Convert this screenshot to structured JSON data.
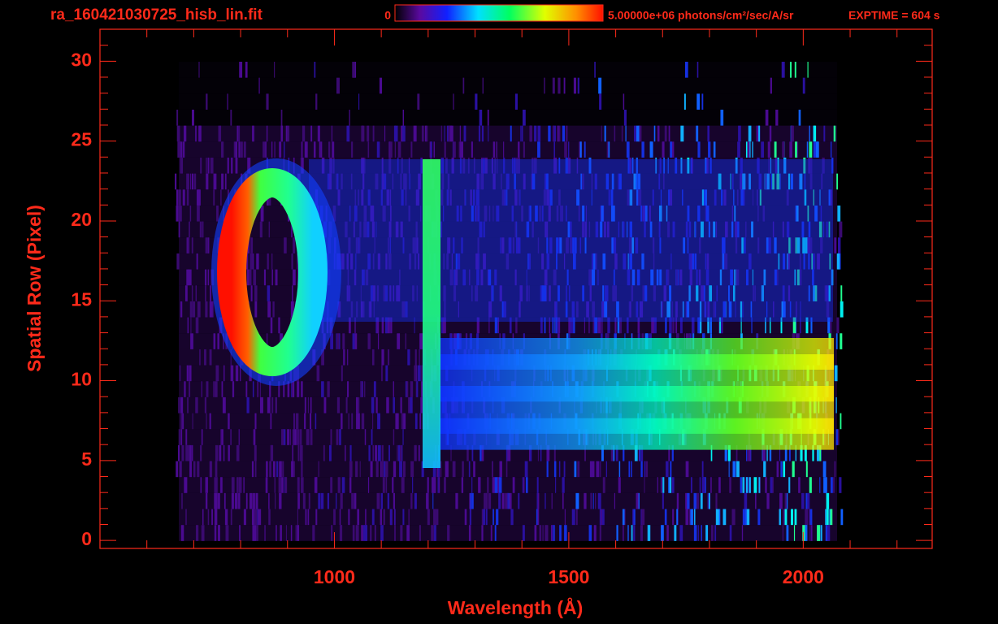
{
  "chart_data": {
    "type": "image",
    "title": "ra_160421030725_hisb_lin.fit",
    "exptime": "EXPTIME = 604 s",
    "colorbar_ticks": [
      0,
      {
        "value": 5000000,
        "label": "5.00000e+06 photons/cm²/sec/A/sr"
      }
    ],
    "zlim": [
      0,
      5000000
    ],
    "xlabel": "Wavelength (Å)",
    "ylabel": "Spatial Row (Pixel)",
    "xlim": [
      500,
      2275
    ],
    "ylim": [
      -0.5,
      32
    ],
    "xticks": [
      1000,
      1500,
      2000
    ],
    "yticks": [
      0,
      5,
      10,
      15,
      20,
      25,
      30
    ],
    "xminorticks": [
      600,
      700,
      800,
      900,
      1100,
      1200,
      1300,
      1400,
      1600,
      1700,
      1800,
      1900,
      2100,
      2200
    ],
    "yminorticks": [
      1,
      2,
      3,
      4,
      6,
      7,
      8,
      9,
      11,
      12,
      13,
      14,
      16,
      17,
      18,
      19,
      21,
      22,
      23,
      24,
      26,
      27,
      28,
      29,
      31,
      32
    ],
    "color": "#ff2a1a"
  }
}
